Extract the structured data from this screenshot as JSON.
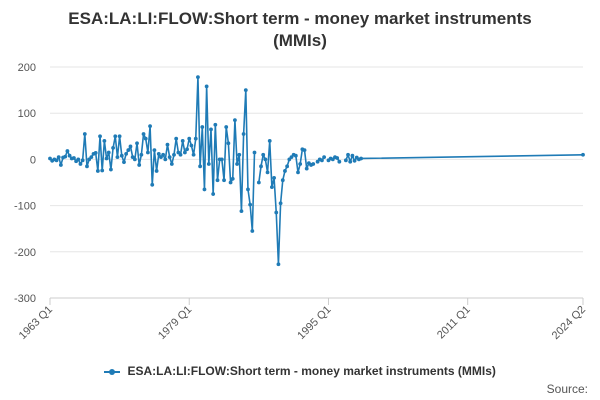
{
  "chart_data": {
    "type": "line",
    "title": "ESA:LA:LI:FLOW:Short term - money market instruments (MMIs)",
    "xlabel": "",
    "ylabel": "",
    "x_ticks": [
      "1963 Q1",
      "1979 Q1",
      "1995 Q1",
      "2011 Q1",
      "2024 Q2"
    ],
    "xlim": [
      "1963 Q1",
      "2024 Q2"
    ],
    "ylim": [
      -300,
      200
    ],
    "y_ticks": [
      -300,
      -200,
      -100,
      0,
      100,
      200
    ],
    "grid": true,
    "legend": "bottom",
    "series": [
      {
        "name": "ESA:LA:LI:FLOW:Short term - money market instruments (MMIs)",
        "color": "#1f7bb6",
        "points": [
          [
            "1963 Q1",
            2
          ],
          [
            "1963 Q2",
            -3
          ],
          [
            "1963 Q3",
            0
          ],
          [
            "1963 Q4",
            -2
          ],
          [
            "1964 Q1",
            5
          ],
          [
            "1964 Q2",
            -12
          ],
          [
            "1964 Q3",
            4
          ],
          [
            "1964 Q4",
            6
          ],
          [
            "1965 Q1",
            18
          ],
          [
            "1965 Q2",
            8
          ],
          [
            "1965 Q3",
            2
          ],
          [
            "1965 Q4",
            3
          ],
          [
            "1966 Q1",
            -4
          ],
          [
            "1966 Q2",
            0
          ],
          [
            "1966 Q3",
            -10
          ],
          [
            "1966 Q4",
            -2
          ],
          [
            "1967 Q1",
            55
          ],
          [
            "1967 Q2",
            -15
          ],
          [
            "1967 Q3",
            0
          ],
          [
            "1967 Q4",
            5
          ],
          [
            "1968 Q1",
            12
          ],
          [
            "1968 Q2",
            14
          ],
          [
            "1968 Q3",
            -25
          ],
          [
            "1968 Q4",
            50
          ],
          [
            "1969 Q1",
            -24
          ],
          [
            "1969 Q2",
            40
          ],
          [
            "1969 Q3",
            2
          ],
          [
            "1969 Q4",
            15
          ],
          [
            "1970 Q1",
            -22
          ],
          [
            "1970 Q2",
            25
          ],
          [
            "1970 Q3",
            50
          ],
          [
            "1970 Q4",
            5
          ],
          [
            "1971 Q1",
            50
          ],
          [
            "1971 Q2",
            8
          ],
          [
            "1971 Q3",
            -6
          ],
          [
            "1971 Q4",
            12
          ],
          [
            "1972 Q1",
            20
          ],
          [
            "1972 Q2",
            28
          ],
          [
            "1972 Q3",
            5
          ],
          [
            "1972 Q4",
            0
          ],
          [
            "1973 Q1",
            35
          ],
          [
            "1973 Q2",
            -12
          ],
          [
            "1973 Q3",
            10
          ],
          [
            "1973 Q4",
            55
          ],
          [
            "1974 Q1",
            45
          ],
          [
            "1974 Q2",
            15
          ],
          [
            "1974 Q3",
            72
          ],
          [
            "1974 Q4",
            -55
          ],
          [
            "1975 Q1",
            20
          ],
          [
            "1975 Q2",
            -25
          ],
          [
            "1975 Q3",
            12
          ],
          [
            "1975 Q4",
            5
          ],
          [
            "1976 Q1",
            10
          ],
          [
            "1976 Q2",
            0
          ],
          [
            "1976 Q3",
            32
          ],
          [
            "1976 Q4",
            5
          ],
          [
            "1977 Q1",
            -10
          ],
          [
            "1977 Q2",
            10
          ],
          [
            "1977 Q3",
            45
          ],
          [
            "1977 Q4",
            15
          ],
          [
            "1978 Q1",
            10
          ],
          [
            "1978 Q2",
            40
          ],
          [
            "1978 Q3",
            15
          ],
          [
            "1978 Q4",
            22
          ],
          [
            "1979 Q1",
            45
          ],
          [
            "1979 Q2",
            30
          ],
          [
            "1979 Q3",
            10
          ],
          [
            "1979 Q4",
            45
          ],
          [
            "1980 Q1",
            178
          ],
          [
            "1980 Q2",
            -15
          ],
          [
            "1980 Q3",
            70
          ],
          [
            "1980 Q4",
            -65
          ],
          [
            "1981 Q1",
            158
          ],
          [
            "1981 Q2",
            -10
          ],
          [
            "1981 Q3",
            65
          ],
          [
            "1981 Q4",
            -75
          ],
          [
            "1982 Q1",
            75
          ],
          [
            "1982 Q2",
            -45
          ],
          [
            "1982 Q3",
            0
          ],
          [
            "1982 Q4",
            0
          ],
          [
            "1983 Q1",
            -45
          ],
          [
            "1983 Q2",
            70
          ],
          [
            "1983 Q3",
            35
          ],
          [
            "1983 Q4",
            -50
          ],
          [
            "1984 Q1",
            -42
          ],
          [
            "1984 Q2",
            85
          ],
          [
            "1984 Q3",
            -10
          ],
          [
            "1984 Q4",
            10
          ],
          [
            "1985 Q1",
            -112
          ],
          [
            "1985 Q2",
            55
          ],
          [
            "1985 Q3",
            150
          ],
          [
            "1985 Q4",
            -65
          ],
          [
            "1986 Q1",
            -98
          ],
          [
            "1986 Q2",
            -155
          ],
          [
            "1986 Q3",
            15
          ],
          [
            "1986 Q4",
            null
          ],
          [
            "1987 Q1",
            -50
          ],
          [
            "1987 Q2",
            -15
          ],
          [
            "1987 Q3",
            10
          ],
          [
            "1987 Q4",
            0
          ],
          [
            "1988 Q1",
            -28
          ],
          [
            "1988 Q2",
            40
          ],
          [
            "1988 Q3",
            -60
          ],
          [
            "1988 Q4",
            -40
          ],
          [
            "1989 Q1",
            -115
          ],
          [
            "1989 Q2",
            -227
          ],
          [
            "1989 Q3",
            -95
          ],
          [
            "1989 Q4",
            -45
          ],
          [
            "1990 Q1",
            -25
          ],
          [
            "1990 Q2",
            -15
          ],
          [
            "1990 Q3",
            0
          ],
          [
            "1990 Q4",
            5
          ],
          [
            "1991 Q1",
            10
          ],
          [
            "1991 Q2",
            8
          ],
          [
            "1991 Q3",
            -28
          ],
          [
            "1991 Q4",
            -10
          ],
          [
            "1992 Q1",
            22
          ],
          [
            "1992 Q2",
            20
          ],
          [
            "1992 Q3",
            -20
          ],
          [
            "1992 Q4",
            -8
          ],
          [
            "1993 Q1",
            -12
          ],
          [
            "1993 Q2",
            -10
          ],
          [
            "1993 Q3",
            null
          ],
          [
            "1993 Q4",
            -5
          ],
          [
            "1994 Q1",
            0
          ],
          [
            "1994 Q2",
            -2
          ],
          [
            "1994 Q3",
            5
          ],
          [
            "1994 Q4",
            null
          ],
          [
            "1995 Q1",
            -2
          ],
          [
            "1995 Q2",
            2
          ],
          [
            "1995 Q3",
            0
          ],
          [
            "1995 Q4",
            5
          ],
          [
            "1996 Q1",
            3
          ],
          [
            "1996 Q2",
            -5
          ],
          [
            "1996 Q3",
            null
          ],
          [
            "1996 Q4",
            null
          ],
          [
            "1997 Q1",
            -2
          ],
          [
            "1997 Q2",
            10
          ],
          [
            "1997 Q3",
            -5
          ],
          [
            "1997 Q4",
            8
          ],
          [
            "1998 Q1",
            -3
          ],
          [
            "1998 Q2",
            4
          ],
          [
            "1998 Q3",
            0
          ],
          [
            "1998 Q4",
            2
          ],
          [
            "2024 Q2",
            10
          ]
        ]
      }
    ]
  },
  "legend_label": "ESA:LA:LI:FLOW:Short term - money market instruments (MMIs)",
  "source_label": "Source:",
  "title_lines": [
    "ESA:LA:LI:FLOW:Short term - money market instruments",
    "(MMIs)"
  ]
}
